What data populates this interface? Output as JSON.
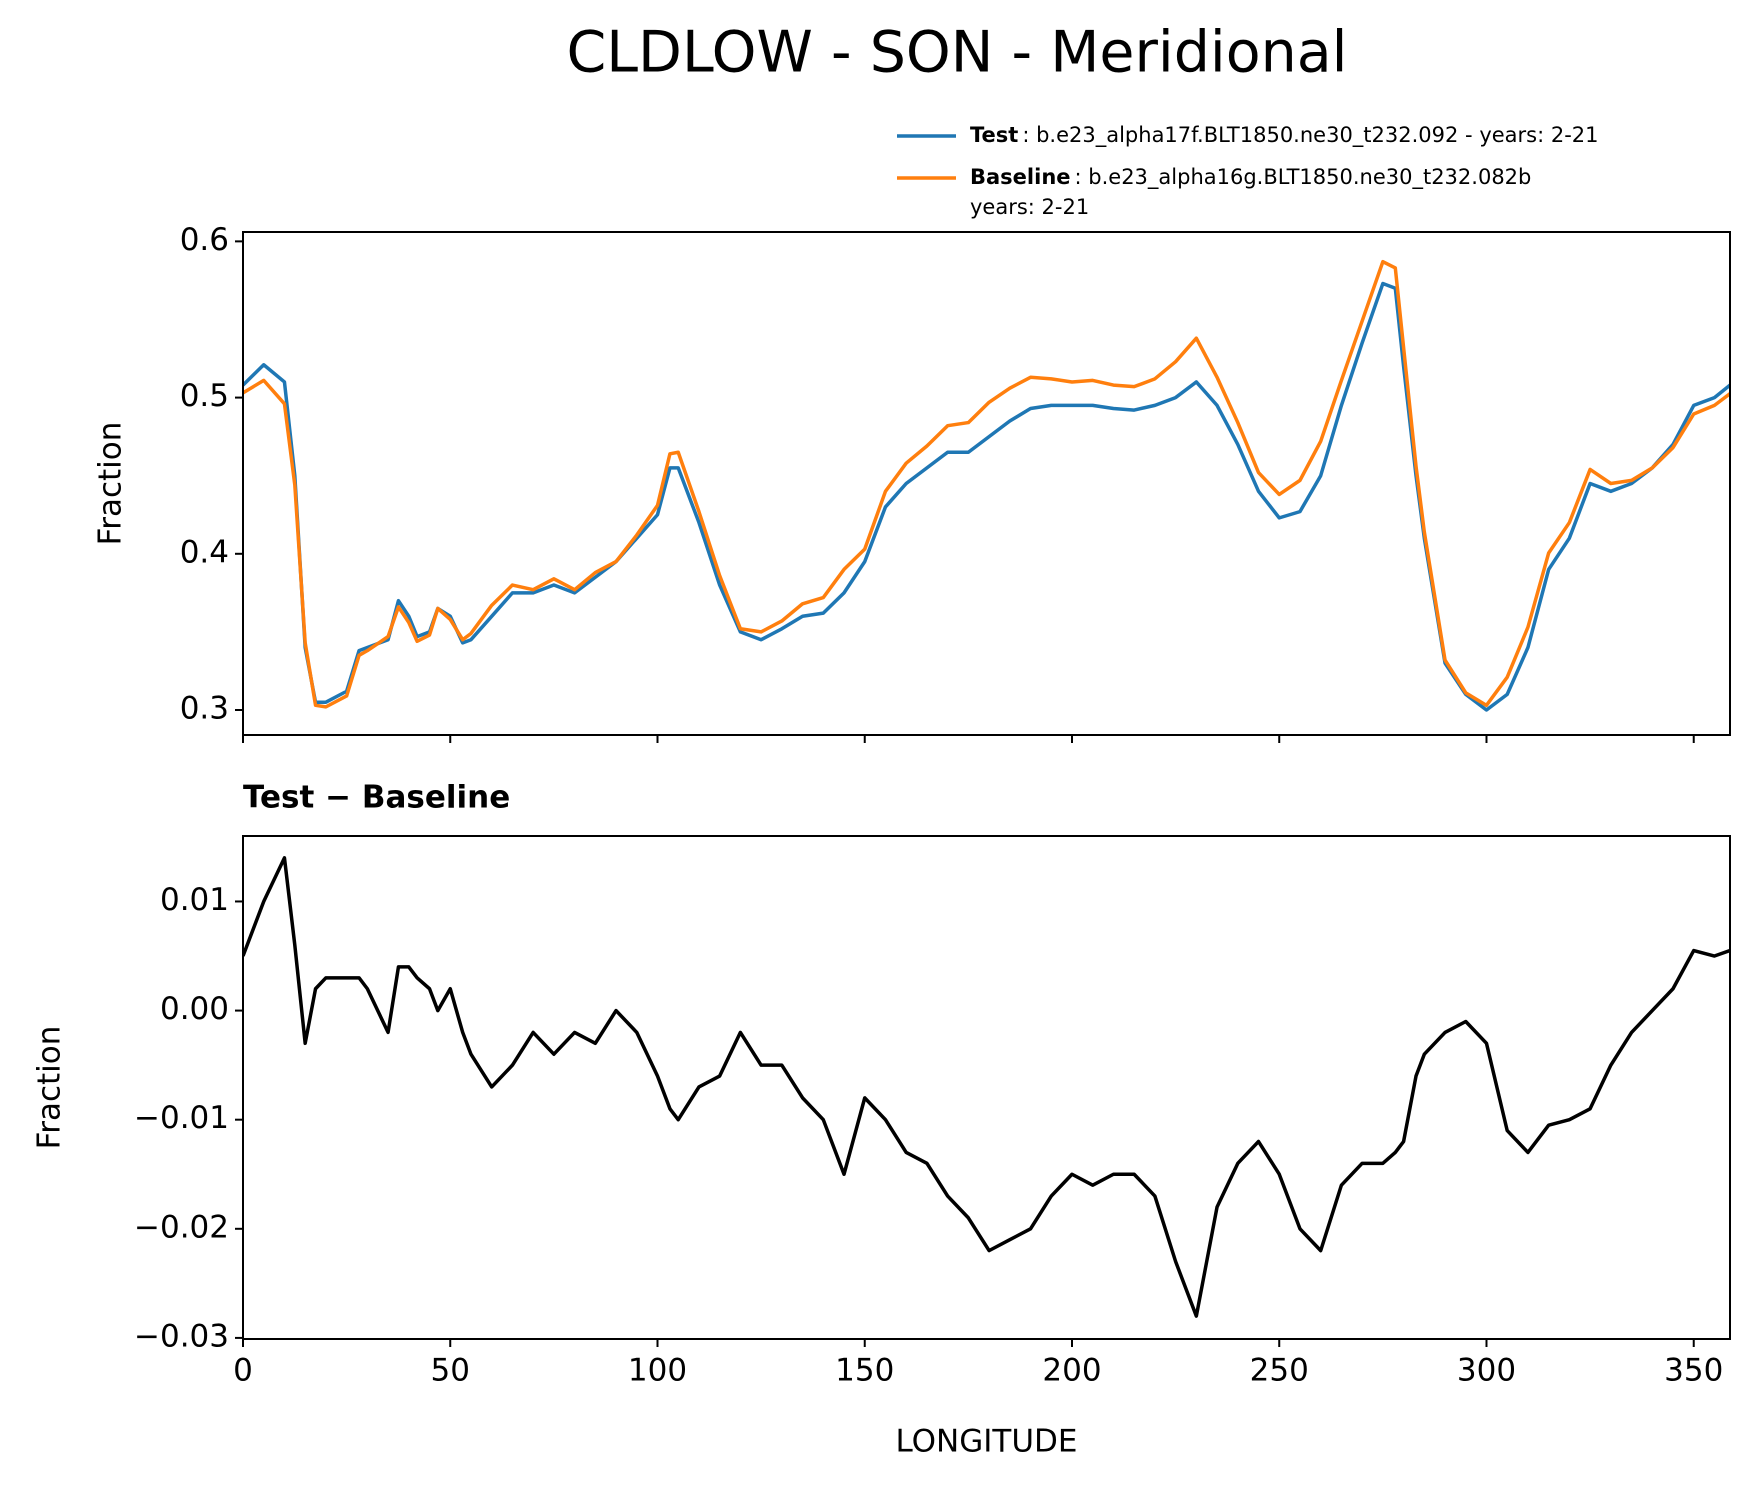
{
  "title": "CLDLOW - SON - Meridional",
  "chart_data": [
    {
      "type": "line",
      "y_label": "Fraction",
      "x": [
        0,
        5,
        10,
        12.5,
        15,
        17.5,
        20,
        25,
        28,
        30,
        35,
        37.5,
        40,
        42,
        45,
        47,
        50,
        53,
        55,
        60,
        65,
        70,
        75,
        80,
        85,
        90,
        95,
        100,
        103,
        105,
        110,
        115,
        120,
        125,
        130,
        135,
        140,
        145,
        150,
        155,
        160,
        165,
        170,
        175,
        180,
        185,
        190,
        195,
        200,
        205,
        210,
        215,
        220,
        225,
        230,
        235,
        240,
        245,
        250,
        255,
        260,
        265,
        270,
        275,
        278,
        280,
        283,
        285,
        290,
        295,
        300,
        305,
        310,
        315,
        320,
        325,
        330,
        335,
        340,
        345,
        350,
        355,
        358.75
      ],
      "xlim": [
        0,
        358.75
      ],
      "xticks": [
        0,
        50,
        100,
        150,
        200,
        250,
        300,
        350
      ],
      "ylim": [
        0.284,
        0.606
      ],
      "yticks": [
        0.3,
        0.4,
        0.5,
        0.6
      ],
      "legend": "upper right",
      "series": [
        {
          "name": "Test",
          "details": [
            ": b.e23_alpha17f.BLT1850.ne30_t232.092 - years: 2-21"
          ],
          "color": "#1f77b4",
          "values": [
            0.508,
            0.521,
            0.51,
            0.45,
            0.34,
            0.305,
            0.305,
            0.312,
            0.338,
            0.34,
            0.345,
            0.37,
            0.36,
            0.347,
            0.35,
            0.365,
            0.36,
            0.343,
            0.345,
            0.36,
            0.375,
            0.375,
            0.38,
            0.375,
            0.385,
            0.395,
            0.41,
            0.425,
            0.455,
            0.455,
            0.42,
            0.38,
            0.35,
            0.345,
            0.352,
            0.36,
            0.362,
            0.375,
            0.395,
            0.43,
            0.445,
            0.455,
            0.465,
            0.465,
            0.475,
            0.485,
            0.493,
            0.495,
            0.495,
            0.495,
            0.493,
            0.492,
            0.495,
            0.5,
            0.51,
            0.495,
            0.47,
            0.44,
            0.423,
            0.427,
            0.45,
            0.495,
            0.535,
            0.573,
            0.57,
            0.52,
            0.45,
            0.41,
            0.33,
            0.31,
            0.3,
            0.31,
            0.34,
            0.39,
            0.41,
            0.445,
            0.44,
            0.445,
            0.455,
            0.47,
            0.495,
            0.5,
            0.508
          ]
        },
        {
          "name": "Baseline",
          "details": [
            ": b.e23_alpha16g.BLT1850.ne30_t232.082b",
            "years: 2-21"
          ],
          "color": "#ff7f0e",
          "values": [
            0.503,
            0.511,
            0.496,
            0.444,
            0.343,
            0.303,
            0.302,
            0.309,
            0.335,
            0.338,
            0.347,
            0.366,
            0.356,
            0.344,
            0.348,
            0.365,
            0.358,
            0.345,
            0.349,
            0.367,
            0.38,
            0.377,
            0.384,
            0.377,
            0.388,
            0.395,
            0.412,
            0.431,
            0.464,
            0.465,
            0.427,
            0.386,
            0.352,
            0.35,
            0.357,
            0.368,
            0.372,
            0.39,
            0.403,
            0.44,
            0.458,
            0.469,
            0.482,
            0.484,
            0.497,
            0.506,
            0.513,
            0.512,
            0.51,
            0.511,
            0.508,
            0.507,
            0.512,
            0.523,
            0.538,
            0.513,
            0.484,
            0.452,
            0.438,
            0.447,
            0.472,
            0.511,
            0.549,
            0.587,
            0.583,
            0.532,
            0.456,
            0.414,
            0.332,
            0.311,
            0.303,
            0.321,
            0.353,
            0.4005,
            0.42,
            0.454,
            0.445,
            0.447,
            0.455,
            0.468,
            0.4895,
            0.495,
            0.5025
          ]
        }
      ]
    },
    {
      "type": "line",
      "title": "Test − Baseline",
      "x_label": "LONGITUDE",
      "y_label": "Fraction",
      "x": [
        0,
        5,
        10,
        12.5,
        15,
        17.5,
        20,
        25,
        28,
        30,
        35,
        37.5,
        40,
        42,
        45,
        47,
        50,
        53,
        55,
        60,
        65,
        70,
        75,
        80,
        85,
        90,
        95,
        100,
        103,
        105,
        110,
        115,
        120,
        125,
        130,
        135,
        140,
        145,
        150,
        155,
        160,
        165,
        170,
        175,
        180,
        185,
        190,
        195,
        200,
        205,
        210,
        215,
        220,
        225,
        230,
        235,
        240,
        245,
        250,
        255,
        260,
        265,
        270,
        275,
        278,
        280,
        283,
        285,
        290,
        295,
        300,
        305,
        310,
        315,
        320,
        325,
        330,
        335,
        340,
        345,
        350,
        355,
        358.75
      ],
      "xlim": [
        0,
        358.75
      ],
      "xticks": [
        0,
        50,
        100,
        150,
        200,
        250,
        300,
        350
      ],
      "ylim": [
        -0.0301,
        0.016
      ],
      "yticks": [
        {
          "value": -0.03,
          "label": "−0.03"
        },
        {
          "value": -0.02,
          "label": "−0.02"
        },
        {
          "value": -0.01,
          "label": "−0.01"
        },
        {
          "value": 0,
          "label": "0.00"
        },
        0.01
      ],
      "series": [
        {
          "color": "#000000",
          "values": [
            0.005,
            0.01,
            0.014,
            0.006,
            -0.003,
            0.002,
            0.003,
            0.003,
            0.003,
            0.002,
            -0.002,
            0.004,
            0.004,
            0.003,
            0.002,
            0.0,
            0.002,
            -0.002,
            -0.004,
            -0.007,
            -0.005,
            -0.002,
            -0.004,
            -0.002,
            -0.003,
            0.0,
            -0.002,
            -0.006,
            -0.009,
            -0.01,
            -0.007,
            -0.006,
            -0.002,
            -0.005,
            -0.005,
            -0.008,
            -0.01,
            -0.015,
            -0.008,
            -0.01,
            -0.013,
            -0.014,
            -0.017,
            -0.019,
            -0.022,
            -0.021,
            -0.02,
            -0.017,
            -0.015,
            -0.016,
            -0.015,
            -0.015,
            -0.017,
            -0.023,
            -0.028,
            -0.018,
            -0.014,
            -0.012,
            -0.015,
            -0.02,
            -0.022,
            -0.016,
            -0.014,
            -0.014,
            -0.013,
            -0.012,
            -0.006,
            -0.004,
            -0.002,
            -0.001,
            -0.003,
            -0.011,
            -0.013,
            -0.0105,
            -0.01,
            -0.009,
            -0.005,
            -0.002,
            0.0,
            0.002,
            0.0055,
            0.005,
            0.0055
          ]
        }
      ]
    }
  ]
}
